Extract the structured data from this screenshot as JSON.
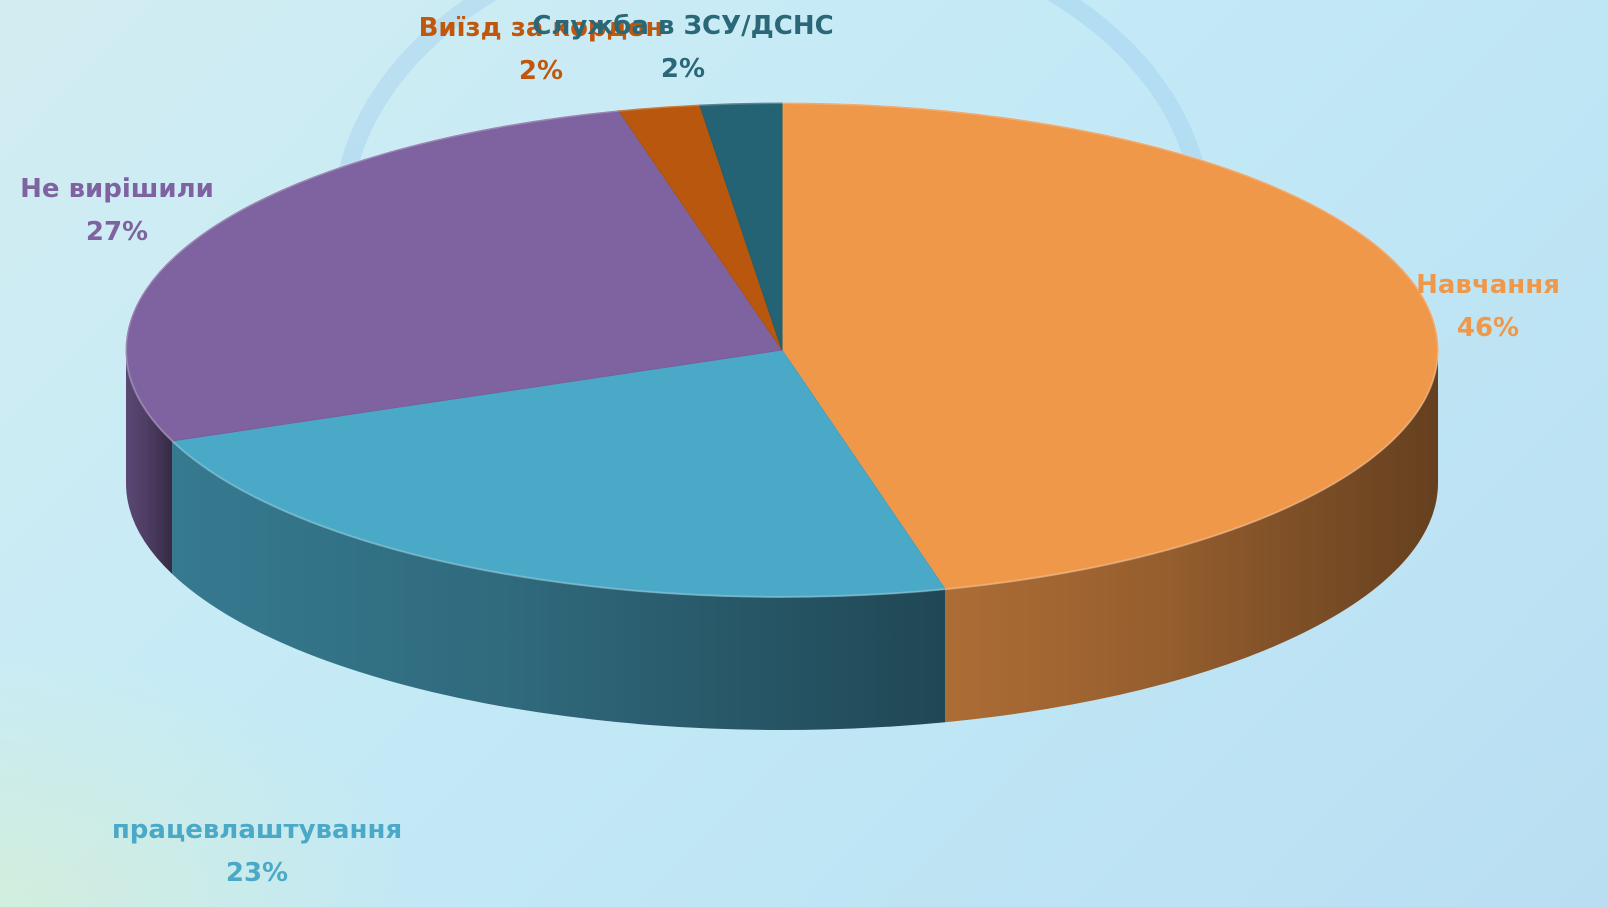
{
  "chart_data": {
    "type": "pie",
    "title": "",
    "categories": [
      "Навчання",
      "працевлаштування",
      "Не вирішили",
      "Виїзд за кордон",
      "Служба в ЗСУ/ДСНС"
    ],
    "values": [
      46,
      23,
      27,
      2,
      2
    ],
    "percent_labels": [
      "46%",
      "23%",
      "27%",
      "2%",
      "2%"
    ],
    "colors": {
      "Навчання": "#f0984a",
      "працевлаштування": "#4ba9c8",
      "Не вирішили": "#7f63a1",
      "Виїзд за кордон": "#b8570d",
      "Служба в ЗСУ/ДСНС": "#236374"
    },
    "label_colors": {
      "Навчання": "#f0984a",
      "працевлаштування": "#4ba9c8",
      "Не вирішили": "#7f63a1",
      "Виїзд за кордон": "#c0570d",
      "Служба в ЗСУ/ДСНС": "#2a6878"
    },
    "style": "3d",
    "legend": "none"
  }
}
